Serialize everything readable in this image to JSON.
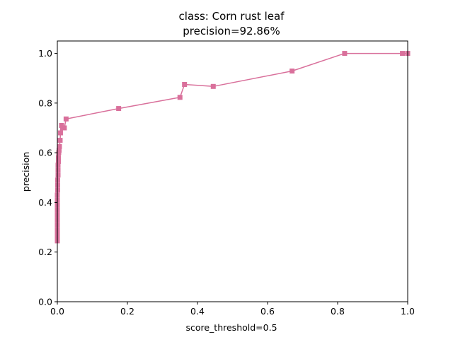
{
  "chart_data": {
    "type": "line",
    "title": "class: Corn rust leaf",
    "subtitle": "precision=92.86%",
    "xlabel": "score_threshold=0.5",
    "ylabel": "precision",
    "xlim": [
      0.0,
      1.0
    ],
    "ylim": [
      0.0,
      1.05
    ],
    "xticks": [
      0.0,
      0.2,
      0.4,
      0.6,
      0.8,
      1.0
    ],
    "xtick_labels": [
      "0.0",
      "0.2",
      "0.4",
      "0.6",
      "0.8",
      "1.0"
    ],
    "yticks": [
      0.0,
      0.2,
      0.4,
      0.6,
      0.8,
      1.0
    ],
    "ytick_labels": [
      "0.0",
      "0.2",
      "0.4",
      "0.6",
      "0.8",
      "1.0"
    ],
    "grid": false,
    "marker": "square",
    "color": "#d9709b",
    "series": [
      {
        "x": [
          0.0,
          0.0,
          0.0,
          0.0,
          0.0,
          0.0,
          0.0,
          0.0,
          0.0,
          0.0,
          0.0,
          0.001,
          0.001,
          0.001,
          0.002,
          0.002,
          0.002,
          0.003,
          0.003,
          0.004,
          0.005,
          0.006,
          0.008,
          0.009,
          0.012,
          0.015,
          0.02,
          0.025,
          0.175,
          0.35,
          0.363,
          0.445,
          0.67,
          0.82,
          0.985,
          1.0
        ],
        "y": [
          0.245,
          0.26,
          0.275,
          0.29,
          0.31,
          0.33,
          0.35,
          0.37,
          0.39,
          0.41,
          0.43,
          0.45,
          0.47,
          0.49,
          0.51,
          0.53,
          0.55,
          0.565,
          0.58,
          0.6,
          0.61,
          0.625,
          0.65,
          0.68,
          0.71,
          0.7,
          0.7,
          0.736,
          0.778,
          0.823,
          0.875,
          0.867,
          0.929,
          1.0,
          1.0,
          1.0
        ]
      }
    ]
  }
}
